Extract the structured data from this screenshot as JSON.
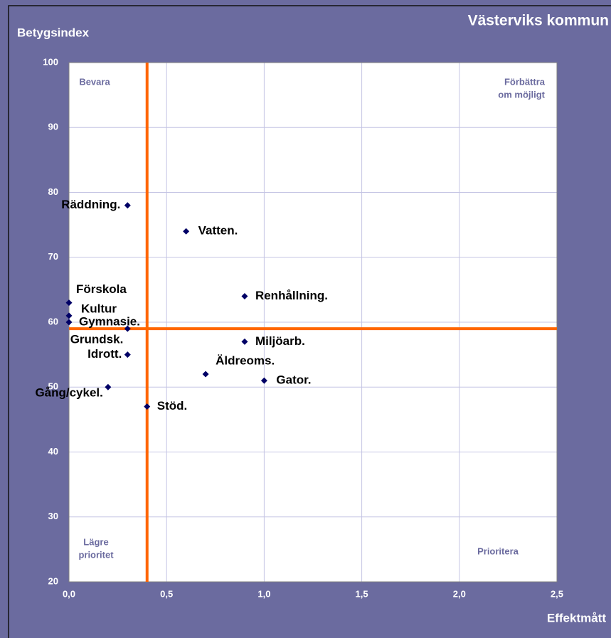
{
  "chart_data": {
    "type": "scatter",
    "title": "Västerviks kommun",
    "x_label": "Effektmått",
    "y_label": "Betygsindex",
    "xlim": [
      0,
      2.5
    ],
    "ylim": [
      20,
      100
    ],
    "xticks": [
      {
        "value": 0,
        "label": "0,0"
      },
      {
        "value": 0.5,
        "label": "0,5"
      },
      {
        "value": 1,
        "label": "1,0"
      },
      {
        "value": 1.5,
        "label": "1,5"
      },
      {
        "value": 2,
        "label": "2,0"
      },
      {
        "value": 2.5,
        "label": "2,5"
      }
    ],
    "yticks": [
      20,
      30,
      40,
      50,
      60,
      70,
      80,
      90,
      100
    ],
    "grid": true,
    "color": "#000066",
    "points": [
      {
        "label": "Räddning.",
        "x": 0.3,
        "y": 78
      },
      {
        "label": "Vatten.",
        "x": 0.6,
        "y": 74
      },
      {
        "label": "Förskola",
        "x": 0,
        "y": 63
      },
      {
        "label": "Kultur",
        "x": 0,
        "y": 61
      },
      {
        "label": "Gymnasie.",
        "x": 0,
        "y": 60
      },
      {
        "label": "Grundsk.",
        "x": 0.3,
        "y": 59
      },
      {
        "label": "Idrott.",
        "x": 0.3,
        "y": 55
      },
      {
        "label": "Gång/cykel.",
        "x": 0.2,
        "y": 50
      },
      {
        "label": "Stöd.",
        "x": 0.4,
        "y": 47
      },
      {
        "label": "Renhållning.",
        "x": 0.9,
        "y": 64
      },
      {
        "label": "Miljöarb.",
        "x": 0.9,
        "y": 57
      },
      {
        "label": "Äldreoms.",
        "x": 0.7,
        "y": 52
      },
      {
        "label": "Gator.",
        "x": 1,
        "y": 51
      }
    ],
    "reference_lines": {
      "x": 0.4,
      "y": 59,
      "color": "#ff6600"
    },
    "quadrant_labels": {
      "top_left": [
        "Bevara"
      ],
      "top_right": [
        "Förbättra",
        "om möjligt"
      ],
      "bottom_left": [
        "Lägre",
        "prioritet"
      ],
      "bottom_right": [
        "Prioritera"
      ]
    }
  }
}
